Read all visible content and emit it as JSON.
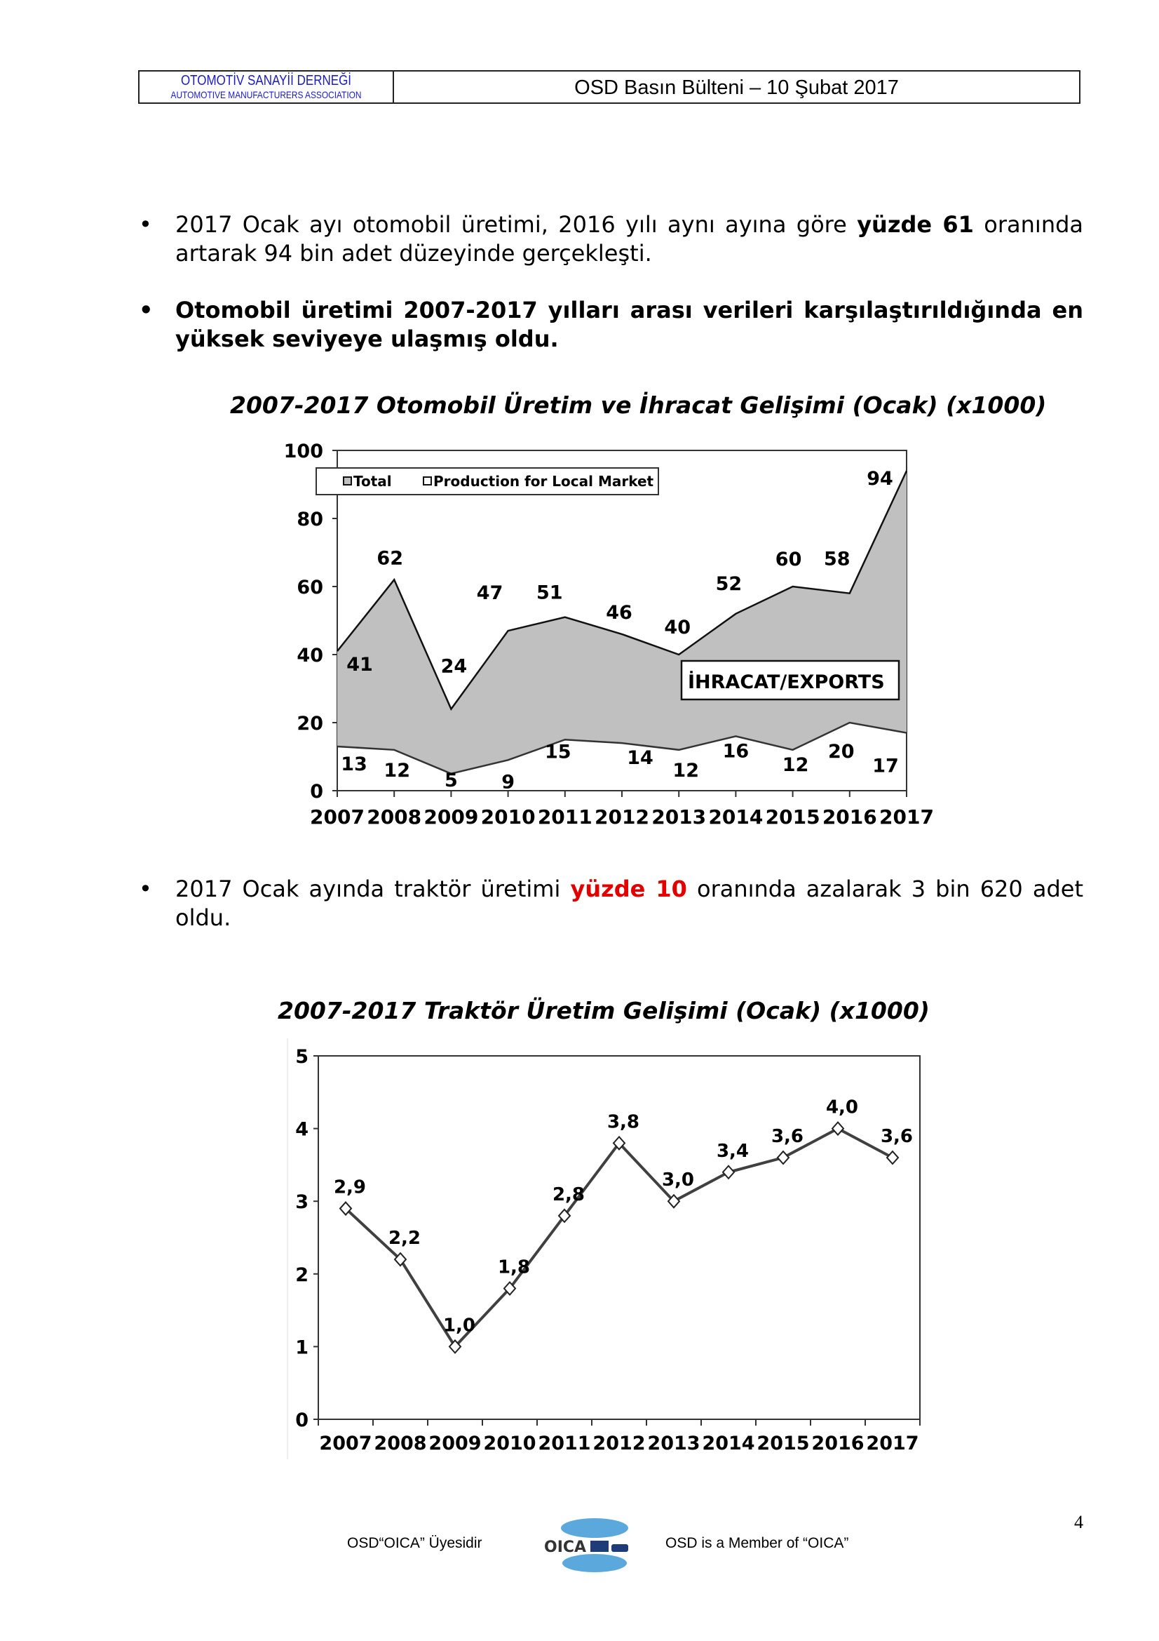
{
  "header": {
    "org_tr": "OTOMOTİV SANAYİİ DERNEĞİ",
    "org_en": "AUTOMOTIVE MANUFACTURERS ASSOCIATION",
    "title": "OSD Basın Bülteni – 10 Şubat 2017"
  },
  "bullets": [
    {
      "segments": [
        {
          "text": "2017 Ocak ayı otomobil üretimi, 2016 yılı aynı ayına göre ",
          "style": "normal"
        },
        {
          "text": "yüzde 61",
          "style": "bold"
        },
        {
          "text": " oranında artarak 94 bin adet düzeyinde gerçekleşti.",
          "style": "normal"
        }
      ]
    },
    {
      "segments": [
        {
          "text": "Otomobil üretimi 2007-2017 yılları arası verileri karşılaştırıldığında en yüksek seviyeye ulaşmış oldu.",
          "style": "bold"
        }
      ]
    },
    {
      "segments": [
        {
          "text": "2017 Ocak ayında traktör üretimi ",
          "style": "normal"
        },
        {
          "text": "yüzde 10",
          "style": "red"
        },
        {
          "text": " oranında azalarak 3 bin 620 adet oldu.",
          "style": "normal"
        }
      ]
    }
  ],
  "chart_data": [
    {
      "type": "area",
      "title": "2007-2017 Otomobil Üretim ve İhracat Gelişimi (Ocak) (x1000)",
      "categories": [
        "2007",
        "2008",
        "2009",
        "2010",
        "2011",
        "2012",
        "2013",
        "2014",
        "2015",
        "2016",
        "2017"
      ],
      "series": [
        {
          "name": "Total",
          "values": [
            41,
            62,
            24,
            47,
            51,
            46,
            40,
            52,
            60,
            58,
            94
          ],
          "color": "#c0c0c0"
        },
        {
          "name": "Production for Local Market",
          "values": [
            13,
            12,
            5,
            9,
            15,
            14,
            12,
            16,
            12,
            20,
            17
          ],
          "color": "#ffffff"
        }
      ],
      "annotation": "İHRACAT/EXPORTS",
      "yticks": [
        "0",
        "20",
        "40",
        "60",
        "80",
        "100"
      ],
      "ylim": [
        0,
        100
      ],
      "legend": "top-left",
      "grid": false
    },
    {
      "type": "line",
      "title": "2007-2017 Traktör Üretim Gelişimi (Ocak) (x1000)",
      "categories": [
        "2007",
        "2008",
        "2009",
        "2010",
        "2011",
        "2012",
        "2013",
        "2014",
        "2015",
        "2016",
        "2017"
      ],
      "values": [
        2.9,
        2.2,
        1.0,
        1.8,
        2.8,
        3.8,
        3.0,
        3.4,
        3.6,
        4.0,
        3.6
      ],
      "labels": [
        "2,9",
        "2,2",
        "1,0",
        "1,8",
        "2,8",
        "3,8",
        "3,0",
        "3,4",
        "3,6",
        "4,0",
        "3,6"
      ],
      "yticks": [
        "0",
        "1",
        "2",
        "3",
        "4",
        "5"
      ],
      "ylim": [
        0,
        5
      ],
      "marker": "diamond",
      "line_color": "#404040",
      "grid": false
    }
  ],
  "footer": {
    "left": "OSD“OICA” Üyesidir",
    "logo": "OICA",
    "right": "OSD is a Member of “OICA”",
    "page": "4"
  }
}
